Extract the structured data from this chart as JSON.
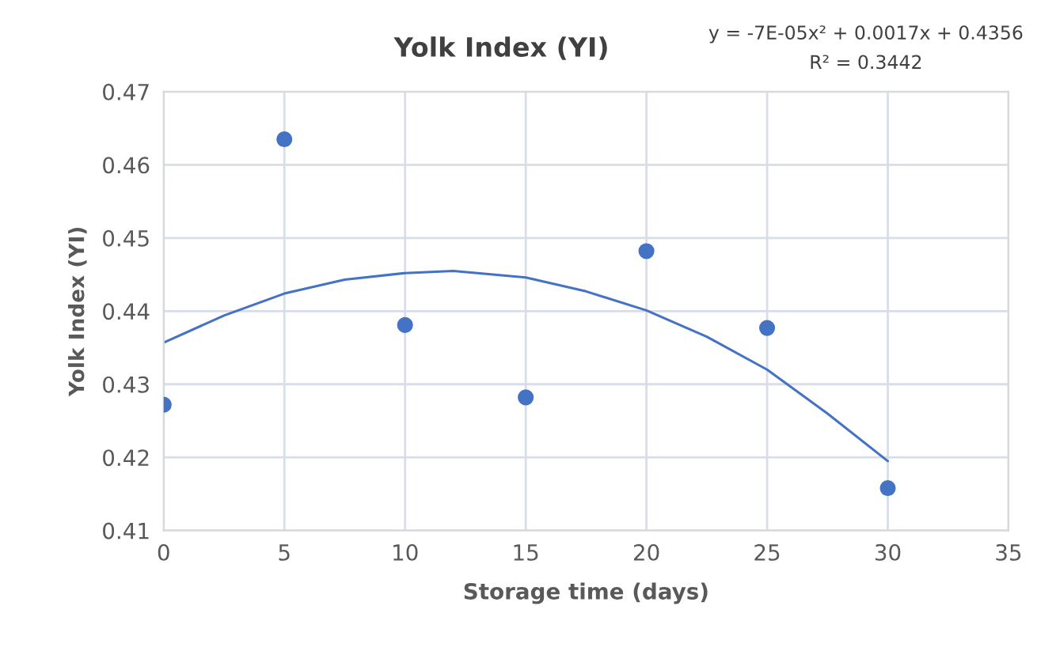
{
  "chart_data": {
    "type": "scatter",
    "title": "Yolk Index (YI)",
    "xlabel": "Storage time (days)",
    "ylabel": "Yolk Index (YI)",
    "xlim": [
      0,
      35
    ],
    "xticks": [
      0,
      5,
      10,
      15,
      20,
      25,
      30,
      35
    ],
    "ylim": [
      0.41,
      0.47
    ],
    "yticks": [
      0.41,
      0.42,
      0.43,
      0.44,
      0.45,
      0.46,
      0.47
    ],
    "grid": true,
    "legend": false,
    "annotations": [
      "y = -7E-05x² + 0.0017x + 0.4356",
      "R² = 0.3442"
    ],
    "series": [
      {
        "marker": "circle",
        "color": "#4472c4",
        "x": [
          0,
          5,
          10,
          15,
          20,
          25,
          30
        ],
        "values": [
          0.4272,
          0.4635,
          0.4381,
          0.4282,
          0.4482,
          0.4377,
          0.4158
        ]
      },
      {
        "type": "line",
        "color": "#4472c4",
        "line_style": "solid",
        "x": [
          0,
          2.5,
          5,
          7.5,
          10,
          12,
          15,
          17.5,
          20,
          22.5,
          25,
          27.5,
          30
        ],
        "values": [
          0.4357,
          0.4394,
          0.4424,
          0.4443,
          0.4452,
          0.4455,
          0.4446,
          0.4427,
          0.4401,
          0.4365,
          0.432,
          0.426,
          0.4195
        ]
      }
    ]
  }
}
